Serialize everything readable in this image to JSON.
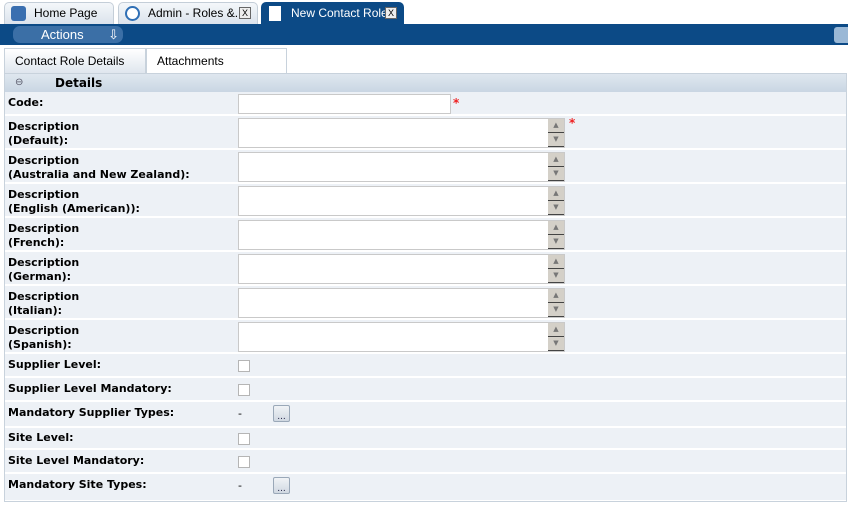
{
  "tabs": [
    {
      "label": "Home Page",
      "icon": "home-icon"
    },
    {
      "label": "Admin - Roles &..",
      "icon": "gear-icon",
      "close": "X"
    },
    {
      "label": "New Contact Role",
      "icon": "document-icon",
      "close": "X",
      "active": true
    }
  ],
  "toolbar": {
    "actions_label": "Actions"
  },
  "subtabs": [
    {
      "label": "Contact Role Details",
      "active": true
    },
    {
      "label": "Attachments"
    }
  ],
  "section": {
    "title": "Details",
    "collapse": "⊖"
  },
  "required_mark": "*",
  "fields": {
    "code": {
      "label": "Code:",
      "value": ""
    },
    "descriptions": [
      {
        "l1": "Description",
        "l2": "(Default):",
        "required": true
      },
      {
        "l1": "Description",
        "l2": "(Australia and New Zealand):"
      },
      {
        "l1": "Description",
        "l2": "(English (American)):"
      },
      {
        "l1": "Description",
        "l2": "(French):"
      },
      {
        "l1": "Description",
        "l2": "(German):"
      },
      {
        "l1": "Description",
        "l2": "(Italian):"
      },
      {
        "l1": "Description",
        "l2": "(Spanish):"
      }
    ],
    "supplier_level": {
      "label": "Supplier Level:",
      "checked": false
    },
    "supplier_level_mandatory": {
      "label": "Supplier Level Mandatory:",
      "checked": false
    },
    "mandatory_supplier_types": {
      "label": "Mandatory Supplier Types:",
      "value": "-",
      "button": "..."
    },
    "site_level": {
      "label": "Site Level:",
      "checked": false
    },
    "site_level_mandatory": {
      "label": "Site Level Mandatory:",
      "checked": false
    },
    "mandatory_site_types": {
      "label": "Mandatory Site Types:",
      "value": "-",
      "button": "..."
    }
  }
}
